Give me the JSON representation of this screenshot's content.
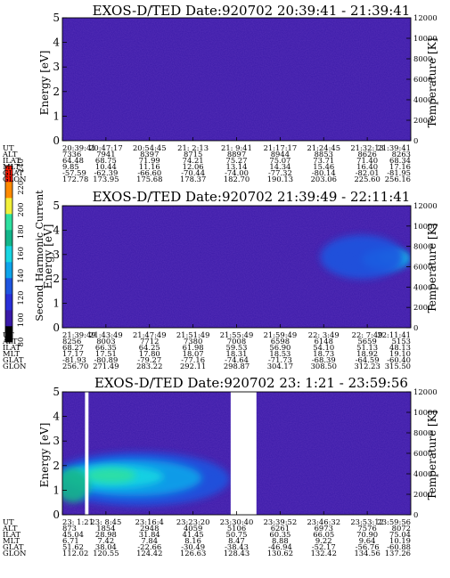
{
  "chart_data": [
    {
      "type": "heatmap",
      "title": "EXOS-D/TED   Date:920702  20:39:41 - 21:39:41",
      "ylabel": "Energy [eV]",
      "ylabel_right": "Temperature [K]",
      "ylim": [
        0,
        5
      ],
      "yticks": [
        "0",
        "1",
        "2",
        "3",
        "4",
        "5"
      ],
      "ylim_right": [
        0,
        12000
      ],
      "yticks_right": [
        "0",
        "2000",
        "4000",
        "6000",
        "8000",
        "10000",
        "12000"
      ],
      "background_color": "#3a1aa8",
      "blobs": [],
      "table_labels": [
        "UT",
        "ALT",
        "ILAT",
        "MLT",
        "GLAT",
        "GLON"
      ],
      "table": [
        [
          "20:39:41",
          "20:47:17",
          "20:54:45",
          "21: 2:13",
          "21: 9:41",
          "21:17:17",
          "21:24:45",
          "21:32:13",
          "21:39:41"
        ],
        [
          "7336",
          "7941",
          "8397",
          "8715",
          "8897",
          "8944",
          "8853",
          "8626",
          "8263"
        ],
        [
          "64.48",
          "68.75",
          "71.99",
          "74.21",
          "75.27",
          "75.07",
          "73.71",
          "71.40",
          "68.34"
        ],
        [
          "9.85",
          "10.44",
          "11.16",
          "12.06",
          "13.14",
          "14.34",
          "15.46",
          "16.40",
          "17.16"
        ],
        [
          "-57.59",
          "-62.39",
          "-66.60",
          "-70.44",
          "-74.00",
          "-77.32",
          "-80.14",
          "-82.01",
          "-81.95"
        ],
        [
          "172.78",
          "173.95",
          "175.68",
          "178.37",
          "182.70",
          "190.13",
          "203.06",
          "225.60",
          "256.16"
        ]
      ]
    },
    {
      "type": "heatmap",
      "title": "EXOS-D/TED   Date:920702  21:39:49 - 22:11:41",
      "ylabel": "Energy [eV]",
      "ylabel_right": "Temperature [K]",
      "ylim": [
        0,
        5
      ],
      "yticks": [
        "0",
        "1",
        "2",
        "3",
        "4",
        "5"
      ],
      "ylim_right": [
        0,
        12000
      ],
      "yticks_right": [
        "0",
        "2000",
        "4000",
        "6000",
        "8000",
        "10000",
        "12000"
      ],
      "background_color": "#3a1aa8",
      "blobs": [
        {
          "t": 0.93,
          "e": 2.8,
          "rt": 0.07,
          "re": 0.45,
          "color": "#0ea4ea"
        },
        {
          "t": 0.95,
          "e": 2.9,
          "rt": 0.04,
          "re": 0.22,
          "color": "#19d6e2"
        },
        {
          "t": 0.86,
          "e": 2.9,
          "rt": 0.12,
          "re": 0.9,
          "color": "#1f55e0"
        }
      ],
      "table_labels": [
        "UT",
        "ALT",
        "ILAT",
        "MLT",
        "GLAT",
        "GLON"
      ],
      "table": [
        [
          "21:39:49",
          "21:43:49",
          "21:47:49",
          "21:51:49",
          "21:55:49",
          "21:59:49",
          "22: 3:49",
          "22: 7:49",
          "22:11:41"
        ],
        [
          "8256",
          "8003",
          "7712",
          "7380",
          "7008",
          "6598",
          "6148",
          "5659",
          "5153"
        ],
        [
          "68.27",
          "66.35",
          "64.25",
          "61.98",
          "59.53",
          "56.90",
          "54.10",
          "51.13",
          "48.13"
        ],
        [
          "17.17",
          "17.51",
          "17.80",
          "18.07",
          "18.31",
          "18.53",
          "18.73",
          "18.92",
          "19.10"
        ],
        [
          "-81.93",
          "-80.89",
          "-79.27",
          "-77.16",
          "-74.64",
          "-71.73",
          "-68.39",
          "-64.59",
          "-60.40"
        ],
        [
          "256.70",
          "271.49",
          "283.22",
          "292.11",
          "298.87",
          "304.17",
          "308.50",
          "312.23",
          "315.50"
        ]
      ]
    },
    {
      "type": "heatmap",
      "title": "EXOS-D/TED   Date:920702  23: 1:21 - 23:59:56",
      "ylabel": "Energy [eV]",
      "ylabel_right": "Temperature [K]",
      "ylim": [
        0,
        5
      ],
      "yticks": [
        "0",
        "1",
        "2",
        "3",
        "4",
        "5"
      ],
      "ylim_right": [
        0,
        12000
      ],
      "yticks_right": [
        "0",
        "2000",
        "4000",
        "6000",
        "8000",
        "10000",
        "12000"
      ],
      "background_color": "#3a1aa8",
      "data_gaps": [
        [
          0.065,
          0.075
        ],
        [
          0.483,
          0.557
        ]
      ],
      "blobs": [
        {
          "t": 0.22,
          "e": 1.45,
          "rt": 0.26,
          "re": 1.1,
          "color": "#1f55e0"
        },
        {
          "t": 0.2,
          "e": 1.5,
          "rt": 0.2,
          "re": 0.75,
          "color": "#0ea4ea"
        },
        {
          "t": 0.15,
          "e": 1.55,
          "rt": 0.14,
          "re": 0.45,
          "color": "#19d6e2"
        },
        {
          "t": 0.03,
          "e": 1.2,
          "rt": 0.05,
          "re": 0.7,
          "color": "#12b58a"
        },
        {
          "t": 0.14,
          "e": 1.6,
          "rt": 0.07,
          "re": 0.3,
          "color": "#2ee0a0"
        }
      ],
      "table_labels": [
        "UT",
        "ALT",
        "ILAT",
        "MLT",
        "GLAT",
        "GLON"
      ],
      "table": [
        [
          "23: 1:21",
          "23: 8:45",
          "23:16:4",
          "23:23:20",
          "23:30:40",
          "23:39:52",
          "23:46:32",
          "23:53:12",
          "23:59:56"
        ],
        [
          "873",
          "1854",
          "2948",
          "4059",
          "5106",
          "6261",
          "6973",
          "7576",
          "8072"
        ],
        [
          "45.04",
          "28.98",
          "31.84",
          "41.45",
          "50.75",
          "60.35",
          "66.05",
          "70.90",
          "75.04"
        ],
        [
          "6.71",
          "7.42",
          "7.84",
          "8.16",
          "8.47",
          "8.88",
          "9.22",
          "9.64",
          "10.19"
        ],
        [
          "51.62",
          "38.04",
          "-22.66",
          "-30.49",
          "-38.43",
          "-46.94",
          "-52.17",
          "-56.76",
          "-60.88"
        ],
        [
          "112.02",
          "120.55",
          "124.42",
          "126.63",
          "128.43",
          "130.62",
          "132.42",
          "134.56",
          "137.26"
        ]
      ]
    }
  ],
  "colorbar": {
    "label": "Second Harmonic Current",
    "ticks": [
      "80",
      "100",
      "120",
      "140",
      "160",
      "180",
      "200",
      "220",
      "240"
    ],
    "colors": [
      "#000000",
      "#3a1aa8",
      "#2a2fd8",
      "#1f55e0",
      "#0ea4ea",
      "#19d6e2",
      "#12b58a",
      "#2ee0a0",
      "#f2f03a",
      "#ff8a00",
      "#ff1a00"
    ]
  }
}
